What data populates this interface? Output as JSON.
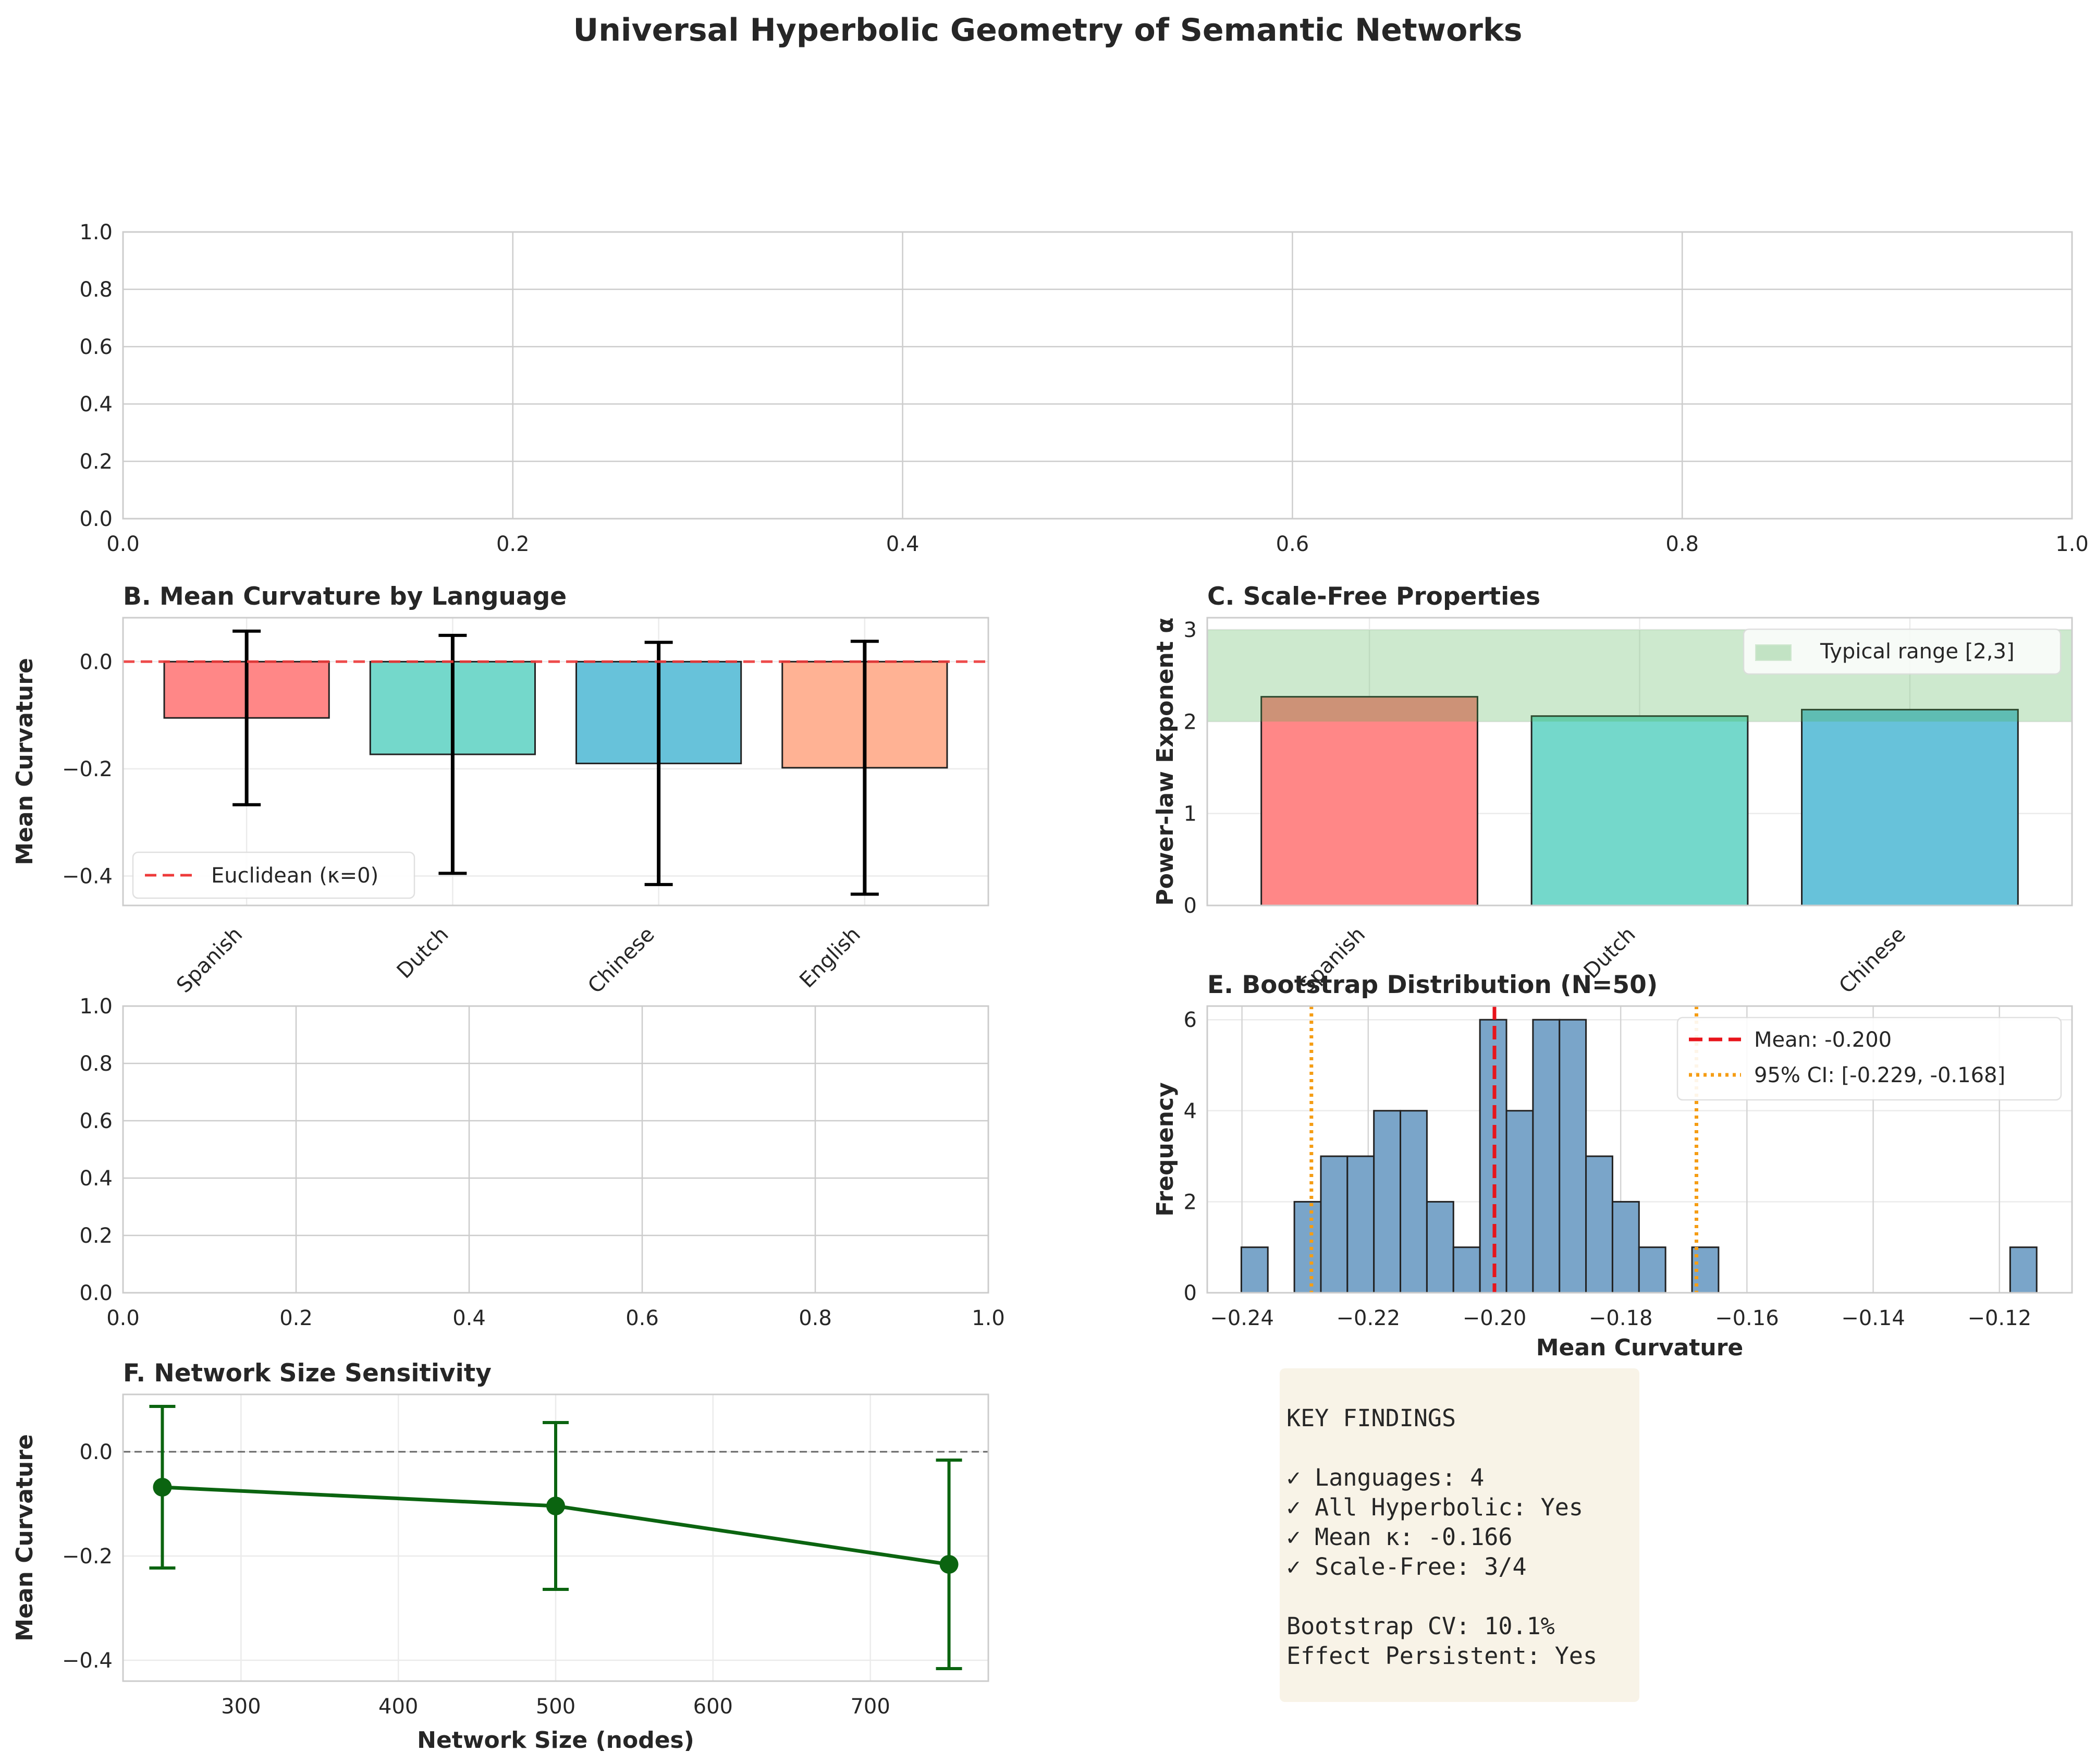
{
  "figure_title": "Universal Hyperbolic Geometry of Semantic Networks",
  "colors": {
    "spanish": "#ff8787",
    "dutch": "#74d8cb",
    "chinese": "#67c2da",
    "english": "#ffb294",
    "euclid_line": "#ee3a3a",
    "typical_band": "#cde5cd",
    "hist_bar": "#7aa5c9",
    "mean_line": "#e8141b",
    "ci_line": "#f59d14",
    "size_line": "#0b6410",
    "findings_bg": "#f8f3e7"
  },
  "chart_data": [
    {
      "id": "A",
      "type": "empty",
      "title": "",
      "xlim": [
        0,
        1
      ],
      "ylim": [
        0,
        1
      ],
      "xticks": [
        "0.0",
        "0.2",
        "0.4",
        "0.6",
        "0.8",
        "1.0"
      ],
      "yticks": [
        "0.0",
        "0.2",
        "0.4",
        "0.6",
        "0.8",
        "1.0"
      ]
    },
    {
      "id": "B",
      "type": "bar",
      "title": "B. Mean Curvature by Language",
      "ylabel": "Mean Curvature",
      "xlabel": "",
      "categories": [
        "Spanish",
        "Dutch",
        "Chinese",
        "English"
      ],
      "values": [
        -0.105,
        -0.173,
        -0.19,
        -0.198
      ],
      "errors": [
        0.162,
        0.222,
        0.226,
        0.236
      ],
      "ylim": [
        -0.455,
        0.082
      ],
      "yticks": [
        -0.4,
        -0.2,
        0.0
      ],
      "ytick_labels": [
        "−0.4",
        "−0.2",
        "0.0"
      ],
      "reference_line": {
        "y": 0,
        "label": "Euclidean (κ=0)"
      },
      "legend": "lower-left"
    },
    {
      "id": "C",
      "type": "bar",
      "title": "C. Scale-Free Properties",
      "ylabel": "Power-law Exponent α",
      "xlabel": "",
      "categories": [
        "Spanish",
        "Dutch",
        "Chinese"
      ],
      "values": [
        2.27,
        2.06,
        2.13
      ],
      "ylim": [
        0,
        3.13
      ],
      "yticks": [
        0,
        1,
        2,
        3
      ],
      "ytick_labels": [
        "0",
        "1",
        "2",
        "3"
      ],
      "band": {
        "from": 2,
        "to": 3,
        "label": "Typical range [2,3]"
      },
      "legend": "upper-right"
    },
    {
      "id": "D",
      "type": "empty",
      "title": "",
      "xlim": [
        0,
        1
      ],
      "ylim": [
        0,
        1
      ],
      "xticks": [
        "0.0",
        "0.2",
        "0.4",
        "0.6",
        "0.8",
        "1.0"
      ],
      "yticks": [
        "0.0",
        "0.2",
        "0.4",
        "0.6",
        "0.8",
        "1.0"
      ]
    },
    {
      "id": "E",
      "type": "histogram",
      "title": "E. Bootstrap Distribution (N=50)",
      "xlabel": "Mean Curvature",
      "ylabel": "Frequency",
      "bin_start": -0.2401,
      "bin_width": 0.0042,
      "counts": [
        1,
        0,
        2,
        3,
        3,
        4,
        4,
        2,
        1,
        6,
        4,
        6,
        6,
        3,
        2,
        1,
        0,
        1,
        0,
        0,
        0,
        0,
        0,
        0,
        0,
        0,
        0,
        0,
        0,
        1
      ],
      "xlim": [
        -0.2455,
        -0.1085
      ],
      "ylim": [
        0,
        6.3
      ],
      "xticks": [
        -0.24,
        -0.22,
        -0.2,
        -0.18,
        -0.16,
        -0.14,
        -0.12
      ],
      "xtick_labels": [
        "−0.24",
        "−0.22",
        "−0.20",
        "−0.18",
        "−0.16",
        "−0.14",
        "−0.12"
      ],
      "yticks": [
        0,
        2,
        4,
        6
      ],
      "ytick_labels": [
        "0",
        "2",
        "4",
        "6"
      ],
      "mean": -0.2,
      "mean_label": "Mean: -0.200",
      "ci": [
        -0.229,
        -0.168
      ],
      "ci_label": "95% CI: [-0.229, -0.168]",
      "legend": "upper-right"
    },
    {
      "id": "F",
      "type": "line",
      "title": "F. Network Size Sensitivity",
      "xlabel": "Network Size (nodes)",
      "ylabel": "Mean Curvature",
      "x": [
        250,
        500,
        750
      ],
      "y": [
        -0.068,
        -0.104,
        -0.216
      ],
      "errors": [
        0.155,
        0.16,
        0.2
      ],
      "xlim": [
        225,
        775
      ],
      "ylim": [
        -0.44,
        0.11
      ],
      "xticks": [
        300,
        400,
        500,
        600,
        700
      ],
      "yticks": [
        -0.4,
        -0.2,
        0.0
      ],
      "ytick_labels": [
        "−0.4",
        "−0.2",
        "0.0"
      ],
      "reference_line": {
        "y": 0
      }
    }
  ],
  "findings": {
    "heading": "KEY FINDINGS",
    "lines": [
      "✓ Languages: 4",
      "✓ All Hyperbolic: Yes",
      "✓ Mean κ: -0.166",
      "✓ Scale-Free: 3/4"
    ],
    "footer_lines": [
      "Bootstrap CV: 10.1%",
      "Effect Persistent: Yes"
    ]
  }
}
